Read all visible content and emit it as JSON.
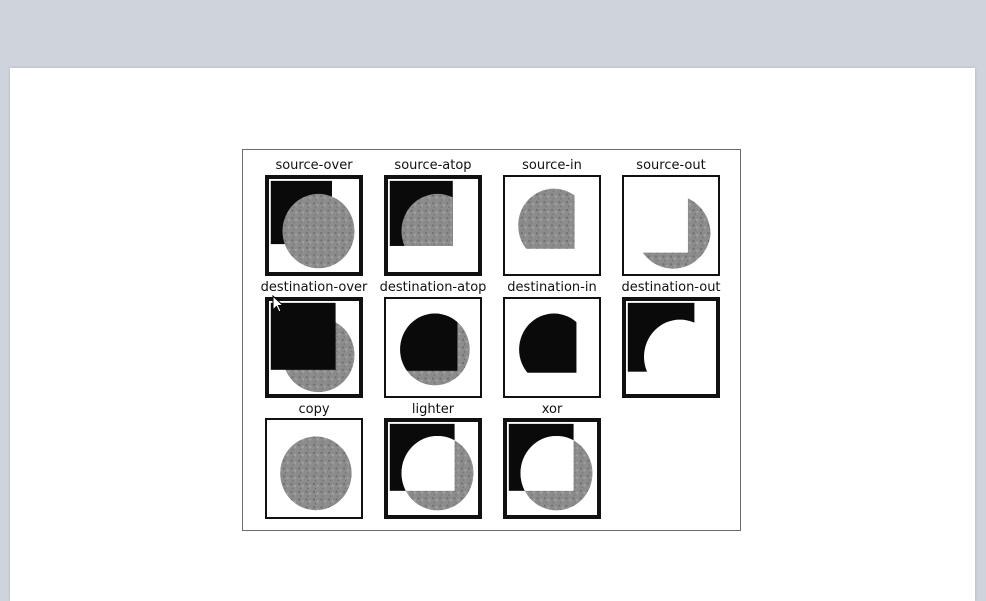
{
  "figure": {
    "cells": [
      {
        "id": "source-over",
        "label": "source-over"
      },
      {
        "id": "source-atop",
        "label": "source-atop"
      },
      {
        "id": "source-in",
        "label": "source-in"
      },
      {
        "id": "source-out",
        "label": "source-out"
      },
      {
        "id": "destination-over",
        "label": "destination-over"
      },
      {
        "id": "destination-atop",
        "label": "destination-atop"
      },
      {
        "id": "destination-in",
        "label": "destination-in"
      },
      {
        "id": "destination-out",
        "label": "destination-out"
      },
      {
        "id": "copy",
        "label": "copy"
      },
      {
        "id": "lighter",
        "label": "lighter"
      },
      {
        "id": "xor",
        "label": "xor"
      }
    ]
  },
  "colors": {
    "square": "#0a0a0a",
    "circle": "#8c8c8c",
    "circle_dark": "#6e6e6e",
    "background": "#cfd3db",
    "paper": "#ffffff"
  },
  "cursor": {
    "icon": "arrow-cursor-icon"
  }
}
